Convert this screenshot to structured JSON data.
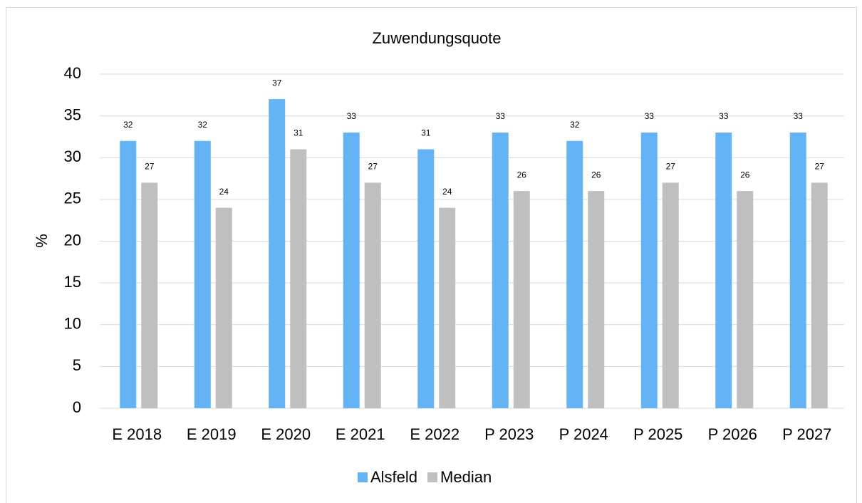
{
  "chart_data": {
    "type": "bar",
    "title": "Zuwendungsquote",
    "y_label": "%",
    "categories": [
      "E 2018",
      "E 2019",
      "E 2020",
      "E 2021",
      "E 2022",
      "P 2023",
      "P 2024",
      "P 2025",
      "P 2026",
      "P 2027"
    ],
    "series": [
      {
        "name": "Alsfeld",
        "color": "#63b3f5",
        "values": [
          32,
          32,
          37,
          33,
          31,
          33,
          32,
          33,
          33,
          33
        ]
      },
      {
        "name": "Median",
        "color": "#bfbfbf",
        "values": [
          27,
          24,
          31,
          27,
          24,
          26,
          26,
          27,
          26,
          27
        ]
      }
    ],
    "ylim": [
      0,
      40
    ],
    "yticks": [
      0,
      5,
      10,
      15,
      20,
      25,
      30,
      35,
      40
    ],
    "grid": true,
    "legend": "bottom"
  }
}
